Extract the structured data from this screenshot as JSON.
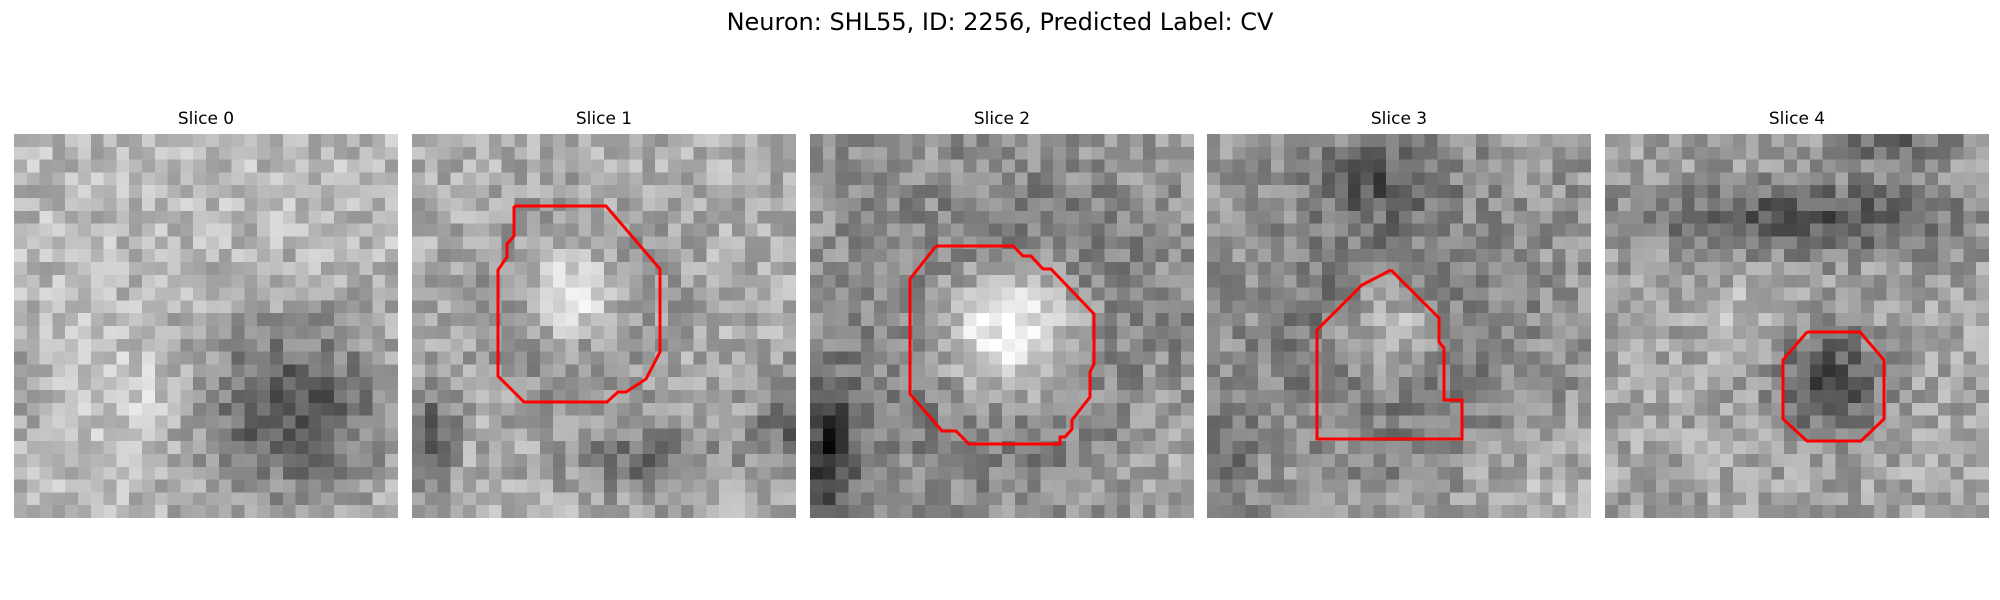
{
  "figure": {
    "title": "Neuron: SHL55, ID: 2256, Predicted Label: CV"
  },
  "panels": [
    {
      "title": "Slice 0"
    },
    {
      "title": "Slice 1"
    },
    {
      "title": "Slice 2"
    },
    {
      "title": "Slice 3"
    },
    {
      "title": "Slice 4"
    }
  ],
  "contour_color": "#ff0000",
  "colormap": "grayscale"
}
